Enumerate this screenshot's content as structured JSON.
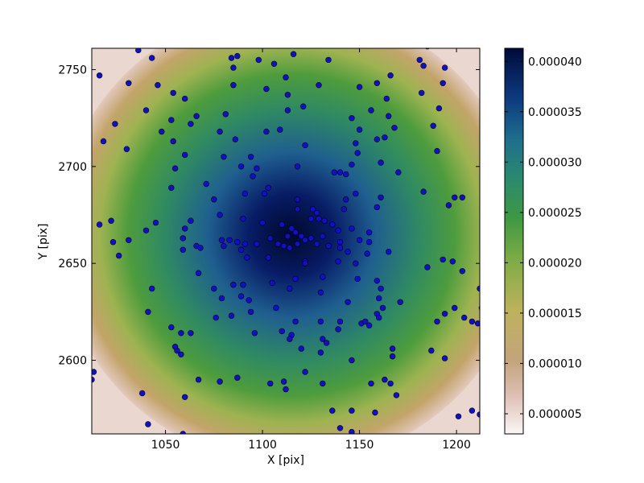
{
  "chart_data": {
    "type": "heatmap",
    "title": "",
    "xlabel": "X [pix]",
    "ylabel": "Y [pix]",
    "xlim": [
      1012,
      1212
    ],
    "ylim": [
      2562,
      2761
    ],
    "x_ticks": [
      1050,
      1100,
      1150,
      1200
    ],
    "x_tick_labels": [
      "1050",
      "1100",
      "1150",
      "1200"
    ],
    "y_ticks": [
      2600,
      2650,
      2700,
      2750
    ],
    "y_tick_labels": [
      "2600",
      "2650",
      "2700",
      "2750"
    ],
    "grid": false,
    "colormap": "gist_earth_r",
    "colorbar": {
      "vmin": 3e-06,
      "vmax": 4.13e-05,
      "ticks": [
        5e-06,
        1e-05,
        1.5e-05,
        2e-05,
        2.5e-05,
        3e-05,
        3.5e-05,
        4e-05
      ],
      "tick_labels": [
        "0.000005",
        "0.000010",
        "0.000015",
        "0.000020",
        "0.000025",
        "0.000030",
        "0.000035",
        "0.000040"
      ]
    },
    "density_peak": [
      1120,
      2664
    ],
    "point_color": "#1010c8",
    "points": [
      [
        1016,
        2747
      ],
      [
        1036,
        2760
      ],
      [
        1043,
        2756
      ],
      [
        1059,
        2763
      ],
      [
        1031,
        2743
      ],
      [
        1046,
        2742
      ],
      [
        1054,
        2738
      ],
      [
        1060,
        2735
      ],
      [
        1040,
        2729
      ],
      [
        1024,
        2722
      ],
      [
        1053,
        2724
      ],
      [
        1063,
        2722
      ],
      [
        1048,
        2718
      ],
      [
        1018,
        2713
      ],
      [
        1054,
        2713
      ],
      [
        1030,
        2709
      ],
      [
        1060,
        2706
      ],
      [
        1055,
        2699
      ],
      [
        1053,
        2689
      ],
      [
        1080,
        2705
      ],
      [
        1084,
        2756
      ],
      [
        1087,
        2757
      ],
      [
        1085,
        2751
      ],
      [
        1098,
        2755
      ],
      [
        1106,
        2753
      ],
      [
        1116,
        2758
      ],
      [
        1134,
        2755
      ],
      [
        1085,
        2742
      ],
      [
        1102,
        2740
      ],
      [
        1112,
        2746
      ],
      [
        1113,
        2737
      ],
      [
        1129,
        2742
      ],
      [
        1150,
        2741
      ],
      [
        1159,
        2743
      ],
      [
        1166,
        2747
      ],
      [
        1183,
        2752
      ],
      [
        1181,
        2755
      ],
      [
        1185,
        2762
      ],
      [
        1194,
        2751
      ],
      [
        1193,
        2743
      ],
      [
        1182,
        2738
      ],
      [
        1191,
        2730
      ],
      [
        1188,
        2721
      ],
      [
        1164,
        2735
      ],
      [
        1156,
        2729
      ],
      [
        1165,
        2726
      ],
      [
        1146,
        2725
      ],
      [
        1168,
        2720
      ],
      [
        1150,
        2719
      ],
      [
        1081,
        2727
      ],
      [
        1066,
        2726
      ],
      [
        1078,
        2718
      ],
      [
        1086,
        2714
      ],
      [
        1102,
        2718
      ],
      [
        1109,
        2719
      ],
      [
        1113,
        2729
      ],
      [
        1121,
        2731
      ],
      [
        1122,
        2711
      ],
      [
        1148,
        2712
      ],
      [
        1159,
        2714
      ],
      [
        1163,
        2715
      ],
      [
        1149,
        2707
      ],
      [
        1190,
        2708
      ],
      [
        1161,
        2702
      ],
      [
        1146,
        2701
      ],
      [
        1094,
        2705
      ],
      [
        1089,
        2700
      ],
      [
        1097,
        2699
      ],
      [
        1095,
        2695
      ],
      [
        1118,
        2700
      ],
      [
        1137,
        2697
      ],
      [
        1140,
        2697
      ],
      [
        1143,
        2696
      ],
      [
        1170,
        2697
      ],
      [
        1071,
        2691
      ],
      [
        1075,
        2683
      ],
      [
        1091,
        2686
      ],
      [
        1101,
        2686
      ],
      [
        1103,
        2689
      ],
      [
        1118,
        2683
      ],
      [
        1118,
        2678
      ],
      [
        1148,
        2686
      ],
      [
        1143,
        2683
      ],
      [
        1161,
        2684
      ],
      [
        1183,
        2687
      ],
      [
        1196,
        2680
      ],
      [
        1199,
        2684
      ],
      [
        1203,
        2684
      ],
      [
        1159,
        2679
      ],
      [
        1078,
        2675
      ],
      [
        1090,
        2673
      ],
      [
        1100,
        2671
      ],
      [
        1126,
        2678
      ],
      [
        1128,
        2676
      ],
      [
        1129,
        2673
      ],
      [
        1132,
        2672
      ],
      [
        1142,
        2678
      ],
      [
        1045,
        2671
      ],
      [
        1063,
        2672
      ],
      [
        1022,
        2672
      ],
      [
        1016,
        2670
      ],
      [
        1040,
        2667
      ],
      [
        1060,
        2668
      ],
      [
        1110,
        2670
      ],
      [
        1115,
        2668
      ],
      [
        1125,
        2673
      ],
      [
        1136,
        2670
      ],
      [
        1139,
        2667
      ],
      [
        1146,
        2668
      ],
      [
        1155,
        2666
      ],
      [
        1113,
        2664
      ],
      [
        1117,
        2666
      ],
      [
        1120,
        2664
      ],
      [
        1122,
        2662
      ],
      [
        1125,
        2663
      ],
      [
        1128,
        2660
      ],
      [
        1118,
        2660
      ],
      [
        1114,
        2658
      ],
      [
        1108,
        2660
      ],
      [
        1104,
        2663
      ],
      [
        1131,
        2664
      ],
      [
        1134,
        2659
      ],
      [
        1140,
        2661
      ],
      [
        1150,
        2662
      ],
      [
        1155,
        2661
      ],
      [
        1059,
        2663
      ],
      [
        1066,
        2659
      ],
      [
        1079,
        2662
      ],
      [
        1083,
        2662
      ],
      [
        1087,
        2661
      ],
      [
        1091,
        2660
      ],
      [
        1097,
        2660
      ],
      [
        1023,
        2661
      ],
      [
        1031,
        2662
      ],
      [
        1068,
        2658
      ],
      [
        1080,
        2659
      ],
      [
        1059,
        2657
      ],
      [
        1026,
        2654
      ],
      [
        1089,
        2657
      ],
      [
        1092,
        2653
      ],
      [
        1103,
        2653
      ],
      [
        1111,
        2659
      ],
      [
        1122,
        2651
      ],
      [
        1140,
        2658
      ],
      [
        1144,
        2656
      ],
      [
        1154,
        2655
      ],
      [
        1165,
        2656
      ],
      [
        1148,
        2650
      ],
      [
        1193,
        2652
      ],
      [
        1198,
        2651
      ],
      [
        1117,
        2642
      ],
      [
        1122,
        2650
      ],
      [
        1131,
        2643
      ],
      [
        1139,
        2651
      ],
      [
        1149,
        2642
      ],
      [
        1159,
        2641
      ],
      [
        1067,
        2645
      ],
      [
        1085,
        2639
      ],
      [
        1075,
        2637
      ],
      [
        1090,
        2639
      ],
      [
        1043,
        2637
      ],
      [
        1105,
        2640
      ],
      [
        1114,
        2637
      ],
      [
        1130,
        2635
      ],
      [
        1144,
        2630
      ],
      [
        1160,
        2632
      ],
      [
        1161,
        2637
      ],
      [
        1171,
        2630
      ],
      [
        1185,
        2648
      ],
      [
        1203,
        2646
      ],
      [
        1212,
        2637
      ],
      [
        1079,
        2632
      ],
      [
        1089,
        2633
      ],
      [
        1093,
        2631
      ],
      [
        1107,
        2627
      ],
      [
        1213,
        2627
      ],
      [
        1094,
        2625
      ],
      [
        1041,
        2625
      ],
      [
        1162,
        2627
      ],
      [
        1159,
        2624
      ],
      [
        1194,
        2624
      ],
      [
        1199,
        2627
      ],
      [
        1190,
        2620
      ],
      [
        1204,
        2622
      ],
      [
        1208,
        2620
      ],
      [
        1211,
        2619
      ],
      [
        1076,
        2622
      ],
      [
        1084,
        2623
      ],
      [
        1117,
        2620
      ],
      [
        1130,
        2620
      ],
      [
        1140,
        2620
      ],
      [
        1151,
        2619
      ],
      [
        1155,
        2618
      ],
      [
        1160,
        2622
      ],
      [
        1053,
        2617
      ],
      [
        1058,
        2614
      ],
      [
        1063,
        2614
      ],
      [
        1096,
        2614
      ],
      [
        1110,
        2615
      ],
      [
        1115,
        2613
      ],
      [
        1114,
        2611
      ],
      [
        1131,
        2611
      ],
      [
        1139,
        2616
      ],
      [
        1153,
        2620
      ],
      [
        1120,
        2606
      ],
      [
        1133,
        2609
      ],
      [
        1056,
        2605
      ],
      [
        1055,
        2607
      ],
      [
        1058,
        2603
      ],
      [
        1167,
        2606
      ],
      [
        1187,
        2605
      ],
      [
        1167,
        2602
      ],
      [
        1194,
        2601
      ],
      [
        1146,
        2600
      ],
      [
        1130,
        2604
      ],
      [
        1087,
        2591
      ],
      [
        1078,
        2589
      ],
      [
        1067,
        2590
      ],
      [
        1104,
        2588
      ],
      [
        1111,
        2589
      ],
      [
        1112,
        2585
      ],
      [
        1122,
        2594
      ],
      [
        1131,
        2588
      ],
      [
        1156,
        2588
      ],
      [
        1163,
        2590
      ],
      [
        1166,
        2588
      ],
      [
        1013,
        2594
      ],
      [
        1012,
        2590
      ],
      [
        1038,
        2583
      ],
      [
        1060,
        2581
      ],
      [
        1169,
        2582
      ],
      [
        1201,
        2571
      ],
      [
        1208,
        2574
      ],
      [
        1212,
        2572
      ],
      [
        1136,
        2574
      ],
      [
        1146,
        2574
      ],
      [
        1158,
        2573
      ],
      [
        1041,
        2567
      ],
      [
        1140,
        2565
      ],
      [
        1146,
        2563
      ],
      [
        1059,
        2562
      ],
      [
        1085,
        2560
      ]
    ]
  }
}
